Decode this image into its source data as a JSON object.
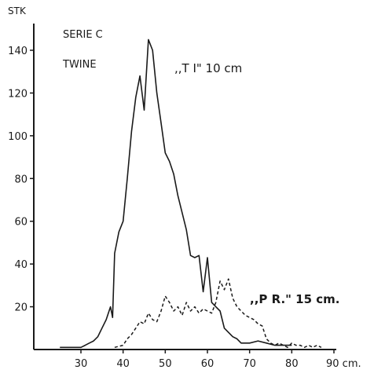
{
  "chart_data": {
    "type": "line",
    "ylabel": "STK",
    "xlabel": "cm.",
    "x_ticks": [
      "30",
      "40",
      "50",
      "60",
      "70",
      "80",
      "90 cm."
    ],
    "y_ticks": [
      "20",
      "40",
      "60",
      "80",
      "100",
      "120",
      "140"
    ],
    "xlim": [
      24,
      92
    ],
    "ylim": [
      0,
      150
    ],
    "grid": false,
    "annotations": [
      "SERIE C",
      "TWINE"
    ],
    "series": [
      {
        "name": ",,T I\" 10 cm",
        "style": "solid",
        "color": "#1a1a1a",
        "points": [
          [
            25,
            1
          ],
          [
            28,
            1
          ],
          [
            30,
            1
          ],
          [
            31,
            2
          ],
          [
            32,
            3
          ],
          [
            33,
            4
          ],
          [
            34,
            6
          ],
          [
            35,
            10
          ],
          [
            36,
            14
          ],
          [
            37,
            20
          ],
          [
            37.5,
            15
          ],
          [
            38,
            45
          ],
          [
            39,
            55
          ],
          [
            40,
            60
          ],
          [
            41,
            80
          ],
          [
            42,
            102
          ],
          [
            43,
            118
          ],
          [
            44,
            128
          ],
          [
            45,
            112
          ],
          [
            46,
            145
          ],
          [
            47,
            140
          ],
          [
            48,
            120
          ],
          [
            49,
            106
          ],
          [
            50,
            92
          ],
          [
            51,
            88
          ],
          [
            52,
            82
          ],
          [
            53,
            72
          ],
          [
            54,
            64
          ],
          [
            55,
            56
          ],
          [
            56,
            44
          ],
          [
            57,
            43
          ],
          [
            58,
            44
          ],
          [
            59,
            27
          ],
          [
            60,
            43
          ],
          [
            61,
            22
          ],
          [
            62,
            20
          ],
          [
            63,
            18
          ],
          [
            64,
            10
          ],
          [
            65,
            8
          ],
          [
            66,
            6
          ],
          [
            67,
            5
          ],
          [
            68,
            3
          ],
          [
            70,
            3
          ],
          [
            72,
            4
          ],
          [
            74,
            3
          ],
          [
            76,
            2
          ],
          [
            78,
            2
          ],
          [
            80,
            2
          ]
        ]
      },
      {
        "name": ",,P R.\" 15 cm.",
        "style": "dashed",
        "color": "#1a1a1a",
        "points": [
          [
            38,
            1
          ],
          [
            40,
            2
          ],
          [
            41,
            5
          ],
          [
            42,
            7
          ],
          [
            43,
            10
          ],
          [
            44,
            13
          ],
          [
            45,
            12
          ],
          [
            46,
            17
          ],
          [
            47,
            14
          ],
          [
            48,
            13
          ],
          [
            49,
            18
          ],
          [
            50,
            25
          ],
          [
            51,
            22
          ],
          [
            52,
            18
          ],
          [
            53,
            20
          ],
          [
            54,
            16
          ],
          [
            55,
            22
          ],
          [
            56,
            18
          ],
          [
            57,
            20
          ],
          [
            58,
            17
          ],
          [
            59,
            19
          ],
          [
            60,
            18
          ],
          [
            61,
            17
          ],
          [
            62,
            22
          ],
          [
            63,
            32
          ],
          [
            64,
            28
          ],
          [
            65,
            33
          ],
          [
            66,
            24
          ],
          [
            67,
            20
          ],
          [
            68,
            18
          ],
          [
            69,
            16
          ],
          [
            70,
            15
          ],
          [
            71,
            14
          ],
          [
            72,
            12
          ],
          [
            73,
            11
          ],
          [
            74,
            5
          ],
          [
            75,
            3
          ],
          [
            76,
            2
          ],
          [
            77,
            3
          ],
          [
            78,
            2
          ],
          [
            79,
            1
          ],
          [
            80,
            3
          ],
          [
            81,
            2
          ],
          [
            82,
            2
          ],
          [
            83,
            1
          ],
          [
            84,
            2
          ],
          [
            85,
            1
          ],
          [
            86,
            2
          ],
          [
            87,
            1
          ]
        ]
      }
    ]
  }
}
